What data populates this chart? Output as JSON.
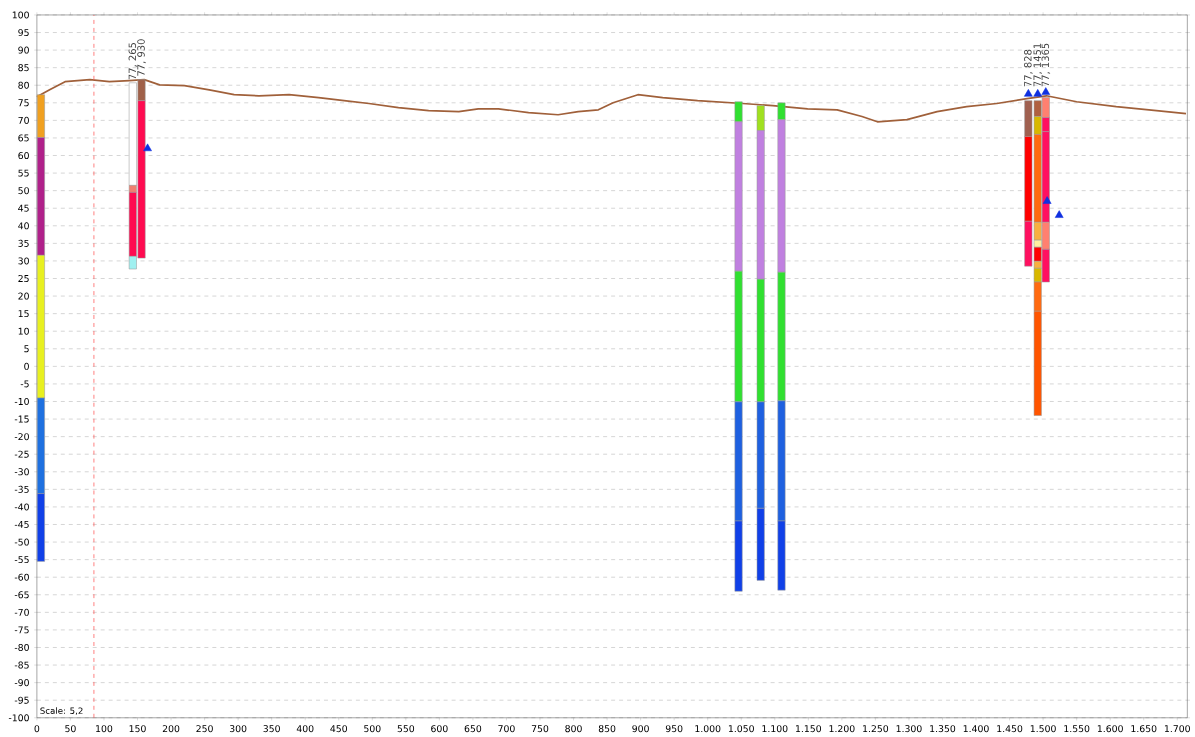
{
  "chart_data": {
    "type": "line",
    "xlim": [
      0,
      1715
    ],
    "ylim": [
      -100,
      100
    ],
    "grid": "y",
    "xticks": [
      0,
      50,
      100,
      150,
      200,
      250,
      300,
      350,
      400,
      450,
      500,
      550,
      600,
      650,
      700,
      750,
      800,
      850,
      900,
      950,
      {
        "value": 1000,
        "label": "1.000"
      },
      {
        "value": 1050,
        "label": "1.050"
      },
      {
        "value": 1100,
        "label": "1.100"
      },
      {
        "value": 1150,
        "label": "1.150"
      },
      {
        "value": 1200,
        "label": "1.200"
      },
      {
        "value": 1250,
        "label": "1.250"
      },
      {
        "value": 1300,
        "label": "1.300"
      },
      {
        "value": 1350,
        "label": "1.350"
      },
      {
        "value": 1400,
        "label": "1.400"
      },
      {
        "value": 1450,
        "label": "1.450"
      },
      {
        "value": 1500,
        "label": "1.500"
      },
      {
        "value": 1550,
        "label": "1.550"
      },
      {
        "value": 1600,
        "label": "1.600"
      },
      {
        "value": 1650,
        "label": "1.650"
      },
      {
        "value": 1700,
        "label": "1.700"
      }
    ],
    "yticks": [
      -100,
      -95,
      -90,
      -85,
      -80,
      -75,
      -70,
      -65,
      -60,
      -55,
      -50,
      -45,
      -40,
      -35,
      -30,
      -25,
      -20,
      -15,
      -10,
      -5,
      0,
      5,
      10,
      15,
      20,
      25,
      30,
      35,
      40,
      45,
      50,
      55,
      60,
      65,
      70,
      75,
      80,
      85,
      90,
      95,
      100
    ],
    "series": [
      {
        "color": "#a0603a",
        "x": [
          0,
          19,
          42,
          79,
          108,
          138,
          160,
          183,
          220,
          257,
          294,
          331,
          376,
          420,
          458,
          495,
          539,
          584,
          629,
          658,
          688,
          733,
          777,
          807,
          837,
          859,
          896,
          933,
          985,
          1052,
          1097,
          1149,
          1193,
          1230,
          1253,
          1297,
          1342,
          1386,
          1431,
          1476,
          1505,
          1550,
          1609,
          1669,
          1713
        ],
        "values": [
          76.7,
          78.7,
          81,
          81.6,
          81,
          81.3,
          81.6,
          80.1,
          79.9,
          78.7,
          77.3,
          77,
          77.3,
          76.5,
          75.6,
          74.8,
          73.6,
          72.8,
          72.5,
          73.3,
          73.3,
          72.2,
          71.6,
          72.5,
          73,
          75,
          77.3,
          76.5,
          75.6,
          74.8,
          74.2,
          73.3,
          73,
          71.1,
          69.6,
          70.2,
          72.5,
          73.9,
          74.8,
          76.2,
          77,
          75.3,
          73.9,
          72.8,
          71.9
        ]
      },
      {
        "type": "bar",
        "x": [
          6,
          143,
          156,
          1046,
          1079,
          1110,
          1478,
          1492,
          1504
        ],
        "base": [
          65.1,
          51.5,
          75.6,
          69.6,
          67.1,
          70.2,
          65.4,
          71.1,
          70.8
        ],
        "values": [
          12.2,
          29.2,
          6.0,
          5.7,
          7.1,
          4.8,
          10.2,
          4.5,
          5.7
        ],
        "colors": [
          "#f0a020",
          "#ffffff",
          "#a06048",
          "#30e030",
          "#a0e020",
          "#30e030",
          "#a06050",
          "#b06040",
          "#ff8070"
        ]
      },
      {
        "type": "bar",
        "x": [
          6,
          143,
          156,
          1046,
          1079,
          1110,
          1478,
          1492,
          1504
        ],
        "base": [
          31.6,
          49.5,
          30.8,
          27.1,
          24.8,
          26.8,
          41.3,
          66,
          66.8
        ],
        "values": [
          33.5,
          2.0,
          44.8,
          42.5,
          42.3,
          43.4,
          24.1,
          5.1,
          4
        ],
        "colors": [
          "#b0208a",
          "#f08070",
          "#ff0a50",
          "#c080e0",
          "#c080e0",
          "#c080e0",
          "#ff0000",
          "#d8b800",
          "#ff1060"
        ]
      },
      {
        "type": "bar",
        "x": [
          6,
          143,
          156,
          1046,
          1079,
          1110,
          1478,
          1492,
          1504
        ],
        "base": [
          -9,
          31.3,
          null,
          -10.1,
          -10.1,
          -9.8,
          28.5,
          41,
          41
        ],
        "values": [
          40.6,
          18.2,
          null,
          37.2,
          34.9,
          36.6,
          12.8,
          25,
          25.8
        ],
        "colors": [
          "#e8f020",
          "#ff0a50",
          null,
          "#30e030",
          "#30e030",
          "#30e030",
          "#ff1060",
          "#ff6a10",
          "#ff1060"
        ]
      },
      {
        "type": "bar",
        "x": [
          6,
          143,
          156,
          1046,
          1079,
          1110,
          1478,
          1492,
          1504
        ],
        "base": [
          -36.2,
          27.7,
          null,
          -44,
          -40.4,
          -44,
          null,
          35.9,
          33.3
        ],
        "values": [
          27.2,
          3.6,
          null,
          33.9,
          30.3,
          34.2,
          null,
          5.1,
          7.7
        ],
        "colors": [
          "#1e70e0",
          "#a0f0f0",
          null,
          "#1e60e0",
          "#1e60e0",
          "#1e60e0",
          null,
          "#f8b040",
          "#ff8070"
        ]
      },
      {
        "type": "bar",
        "x": [
          6,
          143,
          156,
          1046,
          1079,
          1110,
          1478,
          1492,
          1504
        ],
        "base": [
          -55.5,
          null,
          null,
          -64,
          -60.9,
          -63.7,
          null,
          33.9,
          24
        ],
        "values": [
          19.3,
          null,
          null,
          20,
          20.5,
          19.7,
          null,
          2,
          9.3
        ],
        "colors": [
          "#1040e8",
          null,
          null,
          "#1040e8",
          "#1040e8",
          "#1040e8",
          null,
          "#fff0a0",
          "#ff1060"
        ]
      },
      {
        "type": "bar",
        "x": [
          1492
        ],
        "base": [
          29.9
        ],
        "values": [
          4
        ],
        "colors": [
          "#ff0000"
        ]
      },
      {
        "type": "bar",
        "x": [
          1492
        ],
        "base": [
          27.9
        ],
        "values": [
          2
        ],
        "colors": [
          "#f8b040"
        ]
      },
      {
        "type": "bar",
        "x": [
          1492
        ],
        "base": [
          24
        ],
        "values": [
          3.9
        ],
        "colors": [
          "#d8b800"
        ]
      },
      {
        "type": "bar",
        "x": [
          1492
        ],
        "base": [
          15.7
        ],
        "values": [
          8.3
        ],
        "colors": [
          "#ff6a10"
        ]
      },
      {
        "type": "bar",
        "x": [
          1492
        ],
        "base": [
          -14
        ],
        "values": [
          29.7
        ],
        "colors": [
          "#ff5500"
        ]
      },
      {
        "type": "scatter",
        "marker": "triangle",
        "color": "#1030e0",
        "x": [
          165,
          1478,
          1492,
          1504,
          1506,
          1524
        ],
        "values": [
          62,
          77.5,
          77.5,
          78,
          47,
          43
        ]
      }
    ],
    "ref_lines": [
      {
        "axis": "x",
        "value": 85,
        "color": "#ff6060",
        "line_style": "dashed"
      }
    ],
    "annotations": [
      {
        "text": "77, 265",
        "x": 143,
        "y": 81
      },
      {
        "text": "77, 930",
        "x": 156,
        "y": 82
      },
      {
        "text": "77, 828",
        "x": 1478,
        "y": 79
      },
      {
        "text": "77, 1451",
        "x": 1492,
        "y": 79
      },
      {
        "text": "77, 1365",
        "x": 1504,
        "y": 79
      },
      "Scale: 5,2"
    ]
  }
}
